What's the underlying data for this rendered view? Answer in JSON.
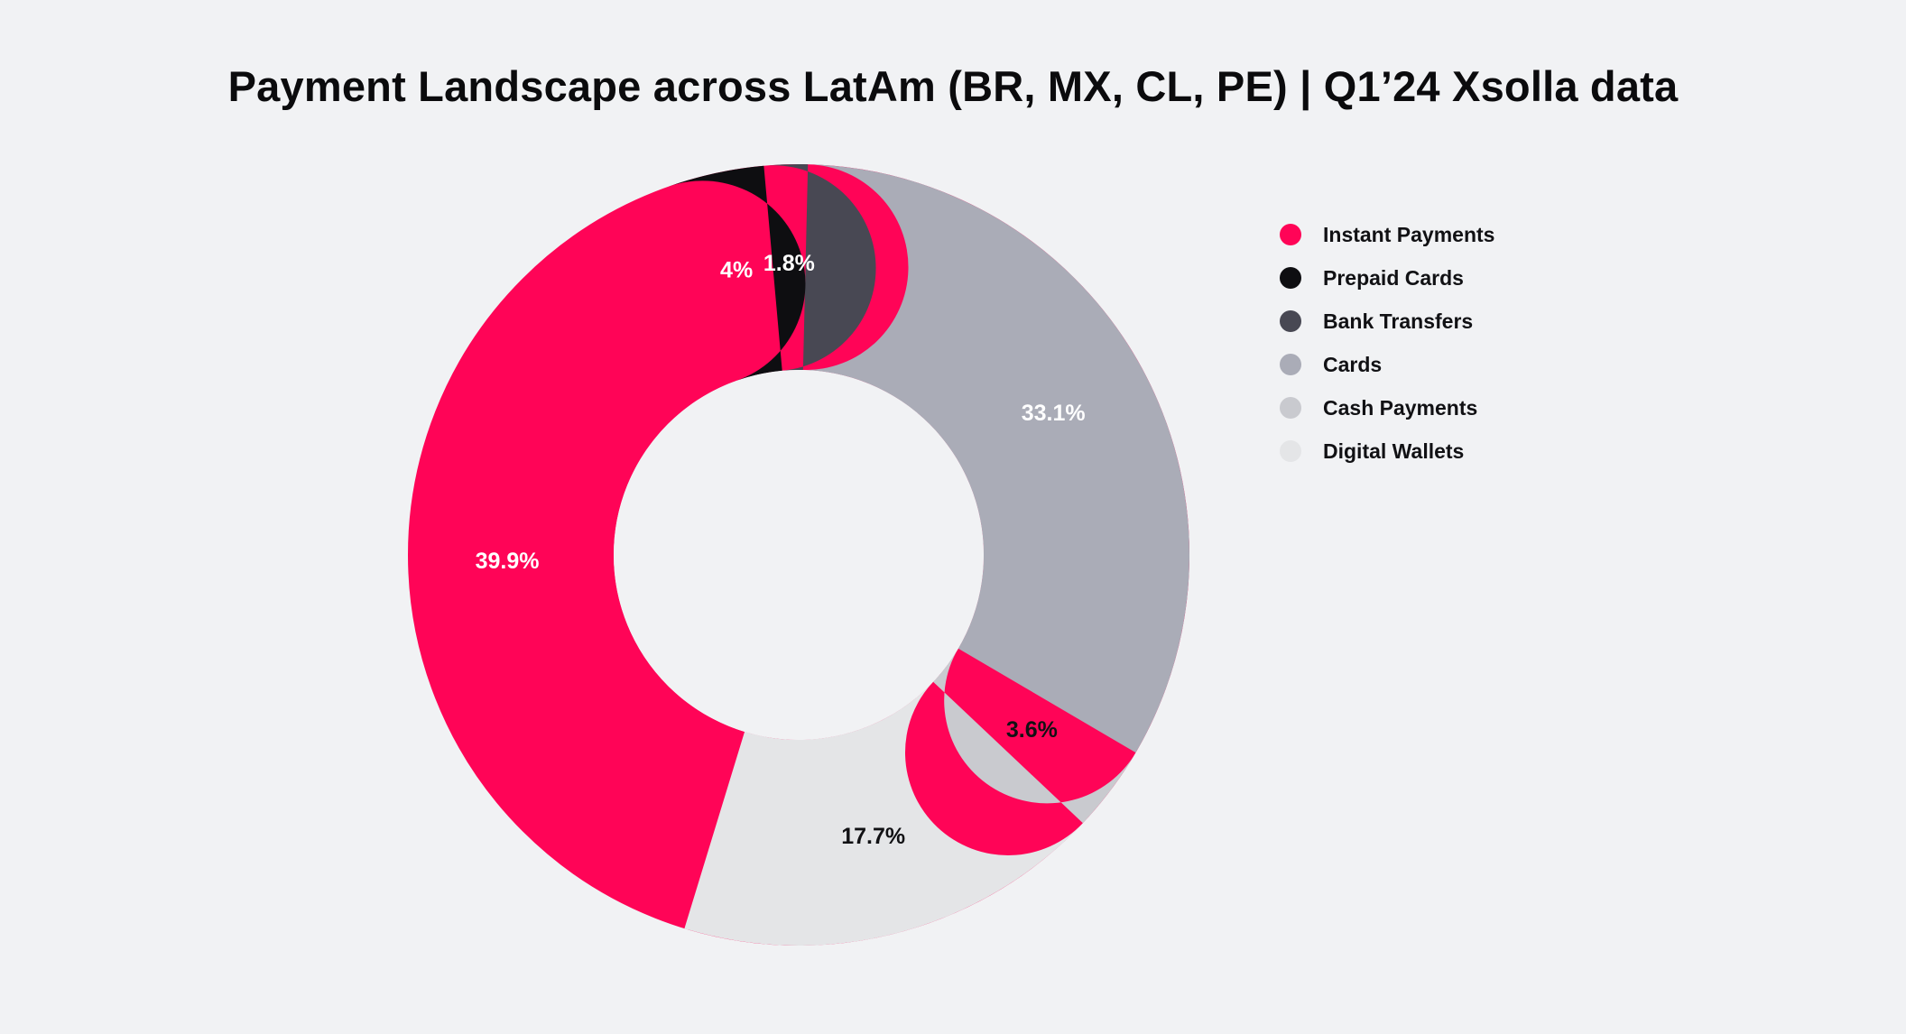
{
  "chart_data": {
    "type": "pie",
    "variant": "donut",
    "title": "Payment Landscape across LatAm (BR, MX, CL, PE) | Q1’24 Xsolla data",
    "legend_position": "right",
    "slices": [
      {
        "name": "Instant Payments",
        "value": 39.9,
        "label": "39.9%",
        "color": "#ff0457",
        "label_color": "#ffffff"
      },
      {
        "name": "Prepaid Cards",
        "value": 4,
        "label": "4%",
        "color": "#0e0e11",
        "label_color": "#ffffff"
      },
      {
        "name": "Bank Transfers",
        "value": 1.8,
        "label": "1.8%",
        "color": "#484853",
        "label_color": "#ffffff"
      },
      {
        "name": "Cards",
        "value": 33.1,
        "label": "33.1%",
        "color": "#aaacb7",
        "label_color": "#ffffff"
      },
      {
        "name": "Cash Payments",
        "value": 3.6,
        "label": "3.6%",
        "color": "#c9cacf",
        "label_color": "#111114"
      },
      {
        "name": "Digital Wallets",
        "value": 17.7,
        "label": "17.7%",
        "color": "#e4e5e7",
        "label_color": "#111114"
      }
    ]
  }
}
